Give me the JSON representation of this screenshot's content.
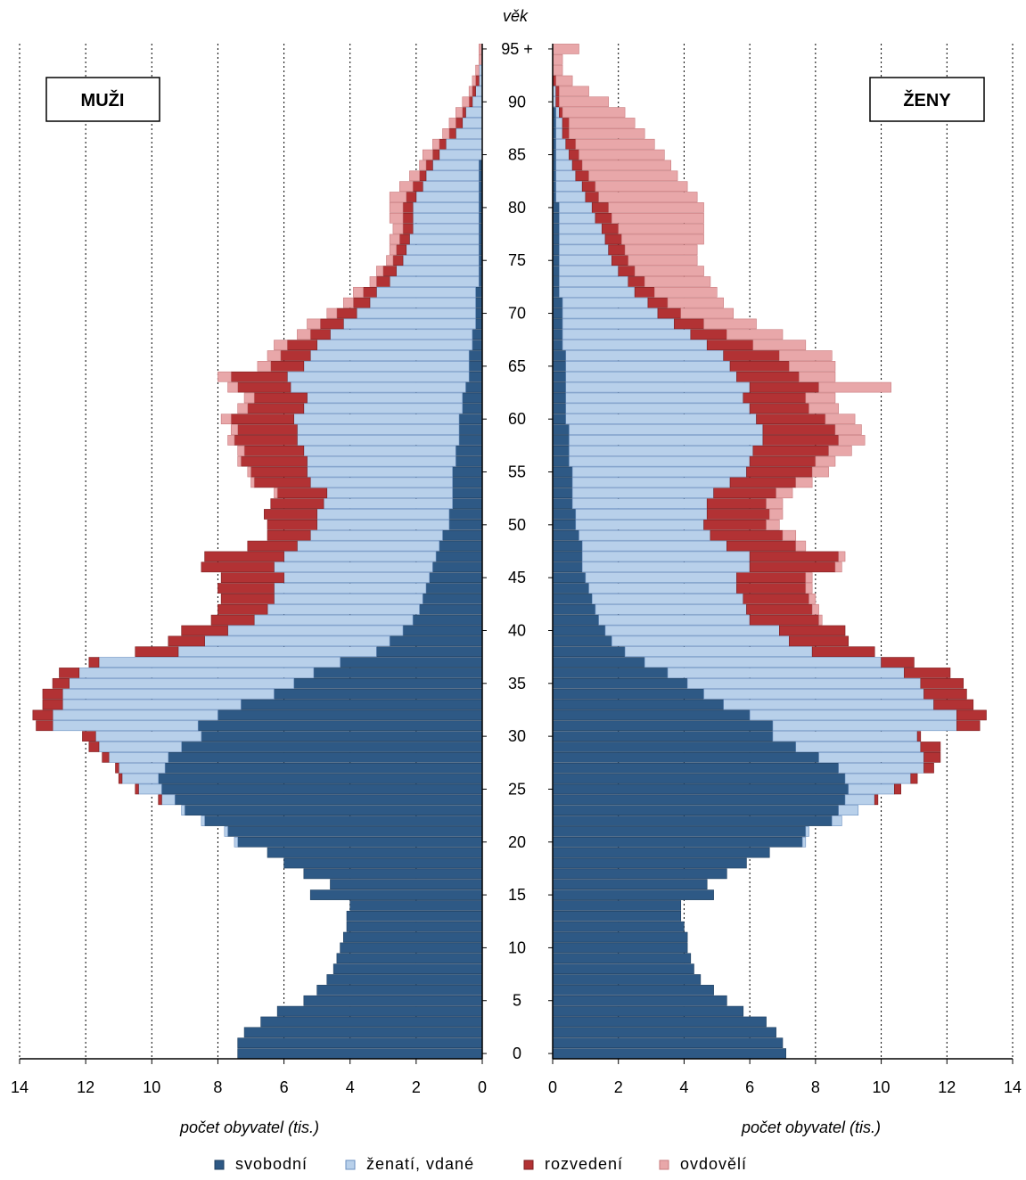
{
  "chart_data": {
    "type": "bar",
    "orientation": "horizontal-population-pyramid",
    "age_axis_title": "věk",
    "age_ticks": [
      "0",
      "5",
      "10",
      "15",
      "20",
      "25",
      "30",
      "35",
      "40",
      "45",
      "50",
      "55",
      "60",
      "65",
      "70",
      "75",
      "80",
      "85",
      "90",
      "95 +"
    ],
    "x_ticks": [
      0,
      2,
      4,
      6,
      8,
      10,
      12,
      14
    ],
    "xlim": [
      0,
      14
    ],
    "xlabel": "počet obyvatel (tis.)",
    "legend_position": "bottom",
    "grid": "vertical-dotted",
    "categories": [
      "svobodní",
      "ženatí, vdané",
      "rozvedení",
      "ovdovělí"
    ],
    "colors": [
      "#2e5985",
      "#b8d0ea",
      "#b23234",
      "#e8a7a9"
    ],
    "ages": [
      0,
      1,
      2,
      3,
      4,
      5,
      6,
      7,
      8,
      9,
      10,
      11,
      12,
      13,
      14,
      15,
      16,
      17,
      18,
      19,
      20,
      21,
      22,
      23,
      24,
      25,
      26,
      27,
      28,
      29,
      30,
      31,
      32,
      33,
      34,
      35,
      36,
      37,
      38,
      39,
      40,
      41,
      42,
      43,
      44,
      45,
      46,
      47,
      48,
      49,
      50,
      51,
      52,
      53,
      54,
      55,
      56,
      57,
      58,
      59,
      60,
      61,
      62,
      63,
      64,
      65,
      66,
      67,
      68,
      69,
      70,
      71,
      72,
      73,
      74,
      75,
      76,
      77,
      78,
      79,
      80,
      81,
      82,
      83,
      84,
      85,
      86,
      87,
      88,
      89,
      90,
      91,
      92,
      93,
      94,
      95
    ],
    "males": {
      "label": "MUŽI",
      "totals": [
        7.4,
        7.4,
        7.2,
        6.7,
        6.2,
        5.4,
        5.0,
        4.7,
        4.5,
        4.4,
        4.3,
        4.2,
        4.1,
        4.1,
        4.0,
        5.2,
        4.6,
        5.4,
        6.0,
        6.5,
        7.5,
        7.8,
        8.5,
        9.1,
        9.8,
        10.5,
        11.0,
        11.1,
        11.5,
        11.9,
        12.3,
        13.5,
        13.7,
        13.3,
        13.3,
        13.0,
        12.8,
        11.9,
        10.5,
        9.5,
        9.1,
        8.4,
        8.2,
        8.1,
        8.2,
        8.1,
        8.6,
        8.5,
        7.5,
        6.8,
        6.9,
        7.0,
        6.8,
        6.6,
        7.4,
        7.5,
        7.8,
        7.7,
        8.0,
        7.9,
        8.1,
        7.6,
        7.4,
        7.9,
        8.2,
        6.9,
        6.6,
        6.8,
        5.9,
        5.4,
        4.8,
        4.2,
        4.0,
        3.5,
        3.3,
        3.0,
        2.9,
        2.8,
        2.7,
        2.8,
        2.9,
        2.8,
        2.5,
        2.2,
        1.9,
        1.7,
        1.5,
        1.2,
        1.0,
        0.8,
        0.6,
        0.4,
        0.3,
        0.2,
        0.1,
        0.1
      ],
      "svobodni": [
        7.4,
        7.4,
        7.2,
        6.7,
        6.2,
        5.4,
        5.0,
        4.7,
        4.5,
        4.4,
        4.3,
        4.2,
        4.1,
        4.1,
        4.0,
        5.2,
        4.6,
        5.4,
        6.0,
        6.5,
        7.4,
        7.7,
        8.4,
        9.0,
        9.3,
        9.7,
        9.8,
        9.6,
        9.5,
        9.1,
        8.5,
        8.6,
        8.0,
        7.3,
        6.3,
        5.7,
        5.1,
        4.3,
        3.2,
        2.8,
        2.4,
        2.1,
        1.9,
        1.8,
        1.7,
        1.6,
        1.5,
        1.4,
        1.3,
        1.2,
        1.0,
        1.0,
        0.9,
        0.9,
        0.9,
        0.9,
        0.8,
        0.8,
        0.7,
        0.7,
        0.7,
        0.6,
        0.6,
        0.5,
        0.4,
        0.4,
        0.4,
        0.3,
        0.3,
        0.2,
        0.2,
        0.2,
        0.2,
        0.1,
        0.1,
        0.1,
        0.1,
        0.1,
        0.1,
        0.1,
        0.1,
        0.1,
        0.1,
        0.1,
        0.1,
        0.0,
        0.0,
        0.0,
        0.0,
        0.0,
        0.0,
        0.0,
        0.0,
        0.0,
        0.0,
        0.0
      ],
      "zenati": [
        0.0,
        0.0,
        0.0,
        0.0,
        0.0,
        0.0,
        0.0,
        0.0,
        0.0,
        0.0,
        0.0,
        0.0,
        0.0,
        0.0,
        0.0,
        0.0,
        0.0,
        0.0,
        0.0,
        0.0,
        0.1,
        0.1,
        0.1,
        0.1,
        0.4,
        0.7,
        1.1,
        1.4,
        1.8,
        2.5,
        3.2,
        4.4,
        5.0,
        5.4,
        6.4,
        6.8,
        7.1,
        7.3,
        6.0,
        5.6,
        5.3,
        4.8,
        4.6,
        4.5,
        4.6,
        4.4,
        4.8,
        4.6,
        4.3,
        4.0,
        4.0,
        4.0,
        3.9,
        3.8,
        4.3,
        4.4,
        4.5,
        4.6,
        4.9,
        4.9,
        5.0,
        4.8,
        4.7,
        5.3,
        5.5,
        5.0,
        4.8,
        4.7,
        4.3,
        4.0,
        3.6,
        3.2,
        3.0,
        2.7,
        2.5,
        2.3,
        2.2,
        2.1,
        2.0,
        2.0,
        2.0,
        1.9,
        1.7,
        1.6,
        1.4,
        1.3,
        1.1,
        0.8,
        0.6,
        0.5,
        0.3,
        0.2,
        0.1,
        0.1,
        0.0,
        0.0
      ],
      "rozvedeni": [
        0.0,
        0.0,
        0.0,
        0.0,
        0.0,
        0.0,
        0.0,
        0.0,
        0.0,
        0.0,
        0.0,
        0.0,
        0.0,
        0.0,
        0.0,
        0.0,
        0.0,
        0.0,
        0.0,
        0.0,
        0.0,
        0.0,
        0.0,
        0.0,
        0.1,
        0.1,
        0.1,
        0.1,
        0.2,
        0.3,
        0.4,
        0.5,
        0.6,
        0.6,
        0.6,
        0.5,
        0.6,
        0.3,
        1.3,
        1.1,
        1.4,
        1.3,
        1.5,
        1.6,
        1.7,
        1.9,
        2.2,
        2.4,
        1.5,
        1.3,
        1.5,
        1.6,
        1.6,
        1.5,
        1.7,
        1.7,
        2.0,
        1.8,
        1.9,
        1.8,
        1.9,
        1.7,
        1.6,
        1.6,
        1.7,
        1.0,
        0.9,
        0.9,
        0.6,
        0.7,
        0.6,
        0.5,
        0.4,
        0.4,
        0.4,
        0.3,
        0.3,
        0.3,
        0.3,
        0.3,
        0.3,
        0.3,
        0.3,
        0.2,
        0.2,
        0.2,
        0.2,
        0.2,
        0.2,
        0.1,
        0.1,
        0.1,
        0.1,
        0.0,
        0.0,
        0.0
      ],
      "ovdoveli": [
        0.0,
        0.0,
        0.0,
        0.0,
        0.0,
        0.0,
        0.0,
        0.0,
        0.0,
        0.0,
        0.0,
        0.0,
        0.0,
        0.0,
        0.0,
        0.0,
        0.0,
        0.0,
        0.0,
        0.0,
        0.0,
        0.0,
        0.0,
        0.0,
        0.0,
        0.0,
        0.0,
        0.0,
        0.0,
        0.0,
        0.0,
        0.0,
        0.0,
        0.0,
        0.0,
        0.0,
        0.0,
        0.0,
        0.0,
        0.0,
        0.0,
        0.0,
        0.0,
        0.0,
        0.0,
        0.0,
        0.0,
        0.0,
        0.0,
        0.0,
        0.0,
        0.0,
        0.0,
        0.1,
        0.1,
        0.1,
        0.1,
        0.2,
        0.2,
        0.2,
        0.3,
        0.3,
        0.3,
        0.3,
        0.4,
        0.4,
        0.4,
        0.4,
        0.4,
        0.4,
        0.3,
        0.3,
        0.3,
        0.2,
        0.2,
        0.2,
        0.2,
        0.3,
        0.3,
        0.4,
        0.4,
        0.5,
        0.4,
        0.3,
        0.2,
        0.3,
        0.2,
        0.2,
        0.2,
        0.2,
        0.2,
        0.1,
        0.1,
        0.1,
        0.1,
        0.1
      ]
    },
    "females": {
      "label": "ŽENY",
      "totals": [
        7.1,
        7.0,
        6.8,
        6.5,
        5.8,
        5.3,
        4.9,
        4.5,
        4.3,
        4.2,
        4.1,
        4.1,
        4.0,
        3.9,
        3.9,
        4.9,
        4.7,
        5.3,
        5.9,
        6.6,
        7.7,
        7.8,
        8.8,
        9.3,
        9.9,
        10.6,
        11.1,
        11.6,
        11.8,
        11.8,
        11.2,
        13.0,
        13.2,
        12.8,
        12.6,
        12.5,
        12.1,
        11.0,
        9.8,
        9.0,
        8.9,
        8.2,
        8.1,
        8.0,
        7.9,
        7.9,
        8.8,
        8.9,
        7.7,
        7.4,
        6.9,
        7.0,
        7.0,
        7.3,
        7.9,
        8.4,
        8.6,
        9.1,
        9.5,
        9.4,
        9.2,
        8.7,
        8.6,
        10.3,
        8.6,
        8.6,
        8.5,
        7.7,
        7.0,
        6.2,
        5.5,
        5.2,
        5.0,
        4.8,
        4.6,
        4.4,
        4.4,
        4.6,
        4.6,
        4.6,
        4.6,
        4.4,
        4.1,
        3.8,
        3.6,
        3.4,
        3.1,
        2.8,
        2.5,
        2.2,
        1.7,
        1.0,
        0.5,
        0.3,
        0.3,
        0.8
      ],
      "svobodne": [
        7.1,
        7.0,
        6.8,
        6.5,
        5.8,
        5.3,
        4.9,
        4.5,
        4.3,
        4.2,
        4.1,
        4.1,
        4.0,
        3.9,
        3.9,
        4.9,
        4.7,
        5.3,
        5.9,
        6.6,
        7.6,
        7.7,
        8.5,
        8.7,
        8.9,
        9.0,
        8.9,
        8.7,
        8.1,
        7.4,
        6.7,
        6.7,
        6.0,
        5.2,
        4.6,
        4.1,
        3.5,
        2.8,
        2.2,
        1.8,
        1.6,
        1.4,
        1.3,
        1.2,
        1.1,
        1.0,
        0.9,
        0.9,
        0.9,
        0.8,
        0.7,
        0.7,
        0.6,
        0.6,
        0.6,
        0.6,
        0.5,
        0.5,
        0.5,
        0.5,
        0.4,
        0.4,
        0.4,
        0.4,
        0.4,
        0.4,
        0.4,
        0.3,
        0.3,
        0.3,
        0.3,
        0.3,
        0.2,
        0.2,
        0.2,
        0.2,
        0.2,
        0.2,
        0.2,
        0.2,
        0.2,
        0.1,
        0.1,
        0.1,
        0.1,
        0.1,
        0.1,
        0.1,
        0.1,
        0.1,
        0.0,
        0.0,
        0.0,
        0.0,
        0.0,
        0.0
      ],
      "vdane": [
        0.0,
        0.0,
        0.0,
        0.0,
        0.0,
        0.0,
        0.0,
        0.0,
        0.0,
        0.0,
        0.0,
        0.0,
        0.0,
        0.0,
        0.0,
        0.0,
        0.0,
        0.0,
        0.0,
        0.0,
        0.1,
        0.1,
        0.3,
        0.6,
        0.9,
        1.4,
        2.0,
        2.6,
        3.2,
        3.8,
        4.4,
        5.6,
        6.3,
        6.4,
        6.7,
        7.1,
        7.2,
        7.2,
        5.7,
        5.4,
        5.3,
        4.6,
        4.6,
        4.6,
        4.5,
        4.6,
        5.1,
        5.1,
        4.4,
        4.0,
        3.9,
        4.0,
        4.1,
        4.3,
        4.8,
        5.3,
        5.5,
        5.6,
        5.9,
        5.9,
        5.8,
        5.6,
        5.4,
        5.6,
        5.2,
        5.0,
        4.8,
        4.4,
        3.9,
        3.4,
        2.9,
        2.6,
        2.3,
        2.1,
        1.8,
        1.6,
        1.5,
        1.4,
        1.3,
        1.1,
        1.0,
        0.9,
        0.8,
        0.6,
        0.5,
        0.4,
        0.3,
        0.2,
        0.2,
        0.1,
        0.1,
        0.1,
        0.0,
        0.0,
        0.0,
        0.0
      ],
      "rozvedene": [
        0.0,
        0.0,
        0.0,
        0.0,
        0.0,
        0.0,
        0.0,
        0.0,
        0.0,
        0.0,
        0.0,
        0.0,
        0.0,
        0.0,
        0.0,
        0.0,
        0.0,
        0.0,
        0.0,
        0.0,
        0.0,
        0.0,
        0.0,
        0.0,
        0.1,
        0.2,
        0.2,
        0.3,
        0.5,
        0.6,
        0.1,
        0.7,
        0.9,
        1.2,
        1.3,
        1.3,
        1.4,
        1.0,
        1.9,
        1.8,
        2.0,
        2.1,
        2.0,
        2.0,
        2.1,
        2.1,
        2.6,
        2.7,
        2.1,
        2.2,
        1.9,
        1.9,
        1.8,
        1.9,
        2.0,
        2.0,
        2.0,
        2.3,
        2.3,
        2.2,
        2.1,
        1.8,
        1.9,
        2.1,
        1.9,
        1.8,
        1.7,
        1.4,
        1.1,
        0.9,
        0.7,
        0.6,
        0.6,
        0.5,
        0.5,
        0.5,
        0.5,
        0.5,
        0.5,
        0.5,
        0.5,
        0.4,
        0.4,
        0.4,
        0.3,
        0.3,
        0.3,
        0.2,
        0.2,
        0.1,
        0.1,
        0.1,
        0.1,
        0.0,
        0.0,
        0.0
      ],
      "ovdovele": [
        0.0,
        0.0,
        0.0,
        0.0,
        0.0,
        0.0,
        0.0,
        0.0,
        0.0,
        0.0,
        0.0,
        0.0,
        0.0,
        0.0,
        0.0,
        0.0,
        0.0,
        0.0,
        0.0,
        0.0,
        0.0,
        0.0,
        0.0,
        0.0,
        0.0,
        0.0,
        0.0,
        0.0,
        0.0,
        0.0,
        0.0,
        0.0,
        0.0,
        0.0,
        0.0,
        0.0,
        0.0,
        0.0,
        0.0,
        0.0,
        0.0,
        0.1,
        0.2,
        0.2,
        0.2,
        0.2,
        0.2,
        0.2,
        0.3,
        0.4,
        0.4,
        0.4,
        0.5,
        0.5,
        0.5,
        0.5,
        0.6,
        0.7,
        0.8,
        0.8,
        0.9,
        0.9,
        0.9,
        2.2,
        1.1,
        1.4,
        1.6,
        1.6,
        1.7,
        1.6,
        1.6,
        1.7,
        1.9,
        2.0,
        2.1,
        2.1,
        2.2,
        2.5,
        2.6,
        2.8,
        2.9,
        3.0,
        2.8,
        2.7,
        2.7,
        2.6,
        2.4,
        2.3,
        2.0,
        1.9,
        1.5,
        0.9,
        0.5,
        0.3,
        0.3,
        0.8
      ]
    }
  }
}
